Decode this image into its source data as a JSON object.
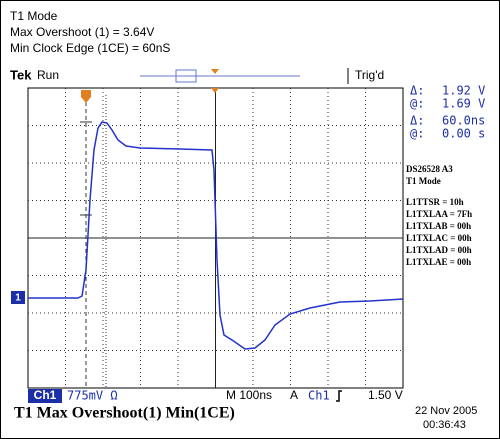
{
  "header": {
    "lines": [
      "T1 Mode",
      "Max Overshoot (1) = 3.64V",
      "Min Clock Edge (1CE) = 60nS"
    ]
  },
  "scope": {
    "brand": "Tek",
    "state": "Run",
    "trigger_status": "Trig'd",
    "channel_marker": "1"
  },
  "readouts": [
    {
      "symbol": "Δ:",
      "value": "1.92 V"
    },
    {
      "symbol": "@:",
      "value": "1.69 V"
    },
    {
      "symbol": "Δ:",
      "value": "60.0ns"
    },
    {
      "symbol": "@:",
      "value": "0.00 s"
    }
  ],
  "notes": [
    "DS26528  A3",
    "T1 Mode",
    "L1TTSR = 10h",
    "L1TXLAA = 7Fh",
    "L1TXLAB = 00h",
    "L1TXLAC = 00h",
    "L1TXLAD = 00h",
    "L1TXLAE = 00h"
  ],
  "status": {
    "channel": "Ch1",
    "scale": "775mV Ω",
    "timebase": "M 100ns",
    "mode": "A",
    "trigger_source": "Ch1",
    "trigger_level": "1.50 V"
  },
  "footer": {
    "caption": "T1 Max Overshoot(1)  Min(1CE)",
    "date": "22 Nov 2005",
    "time": "00:36:43"
  }
}
